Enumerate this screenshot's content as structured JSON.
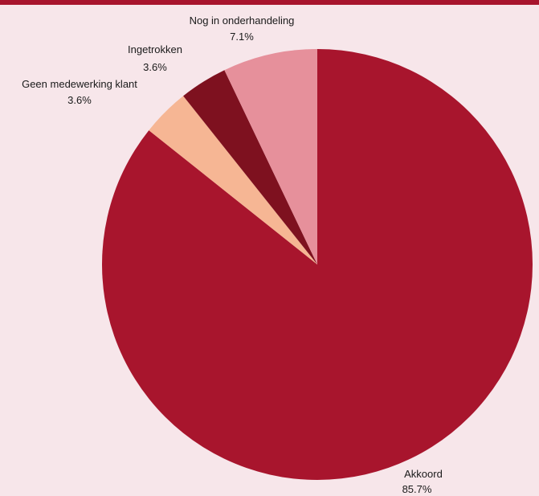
{
  "chart_data": {
    "type": "pie",
    "title": "",
    "slices": [
      {
        "label": "Akkoord",
        "value": 85.7,
        "value_label": "85.7%",
        "color": "#a8152d"
      },
      {
        "label": "Geen medewerking klant",
        "value": 3.6,
        "value_label": "3.6%",
        "color": "#f6b694"
      },
      {
        "label": "Ingetrokken",
        "value": 3.6,
        "value_label": "3.6%",
        "color": "#7e111f"
      },
      {
        "label": "Nog in onderhandeling",
        "value": 7.1,
        "value_label": "7.1%",
        "color": "#e6909b"
      }
    ],
    "start_angle": "12 o'clock",
    "direction": "clockwise",
    "legend": "none",
    "accent_color": "#a8152d",
    "background_color": "#f7e6ea"
  }
}
